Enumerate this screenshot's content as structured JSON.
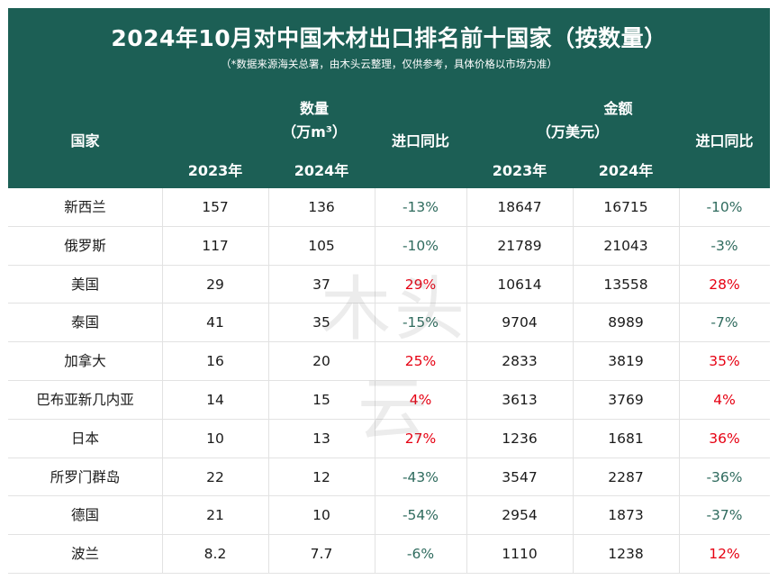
{
  "chart_data": {
    "type": "table",
    "title": "2024年10月对中国木材出口排名前十国家（按数量）",
    "subtitle": "（*数据来源海关总署，由木头云整理，仅供参考，具体价格以市场为准）",
    "headers": {
      "country": "国家",
      "volume_group": "数量",
      "volume_unit": "（万m³）",
      "amount_group": "金额",
      "amount_unit": "（万美元）",
      "yoy": "进口同比",
      "year_2023": "2023年",
      "year_2024": "2024年"
    },
    "rows": [
      {
        "country": "新西兰",
        "vol_2023": "157",
        "vol_2024": "136",
        "vol_yoy": "-13%",
        "amt_2023": "18647",
        "amt_2024": "16715",
        "amt_yoy": "-10%"
      },
      {
        "country": "俄罗斯",
        "vol_2023": "117",
        "vol_2024": "105",
        "vol_yoy": "-10%",
        "amt_2023": "21789",
        "amt_2024": "21043",
        "amt_yoy": "-3%"
      },
      {
        "country": "美国",
        "vol_2023": "29",
        "vol_2024": "37",
        "vol_yoy": "29%",
        "amt_2023": "10614",
        "amt_2024": "13558",
        "amt_yoy": "28%"
      },
      {
        "country": "泰国",
        "vol_2023": "41",
        "vol_2024": "35",
        "vol_yoy": "-15%",
        "amt_2023": "9704",
        "amt_2024": "8989",
        "amt_yoy": "-7%"
      },
      {
        "country": "加拿大",
        "vol_2023": "16",
        "vol_2024": "20",
        "vol_yoy": "25%",
        "amt_2023": "2833",
        "amt_2024": "3819",
        "amt_yoy": "35%"
      },
      {
        "country": "巴布亚新几内亚",
        "vol_2023": "14",
        "vol_2024": "15",
        "vol_yoy": "4%",
        "amt_2023": "3613",
        "amt_2024": "3769",
        "amt_yoy": "4%"
      },
      {
        "country": "日本",
        "vol_2023": "10",
        "vol_2024": "13",
        "vol_yoy": "27%",
        "amt_2023": "1236",
        "amt_2024": "1681",
        "amt_yoy": "36%"
      },
      {
        "country": "所罗门群岛",
        "vol_2023": "22",
        "vol_2024": "12",
        "vol_yoy": "-43%",
        "amt_2023": "3547",
        "amt_2024": "2287",
        "amt_yoy": "-36%"
      },
      {
        "country": "德国",
        "vol_2023": "21",
        "vol_2024": "10",
        "vol_yoy": "-54%",
        "amt_2023": "2954",
        "amt_2024": "1873",
        "amt_yoy": "-37%"
      },
      {
        "country": "波兰",
        "vol_2023": "8.2",
        "vol_2024": "7.7",
        "vol_yoy": "-6%",
        "amt_2023": "1110",
        "amt_2024": "1238",
        "amt_yoy": "12%"
      }
    ],
    "watermark": "木头云"
  },
  "colors": {
    "header_bg": "#1c5f55",
    "negative": "#2f6b5e",
    "positive": "#e60012",
    "grid": "#e2e2e2"
  }
}
